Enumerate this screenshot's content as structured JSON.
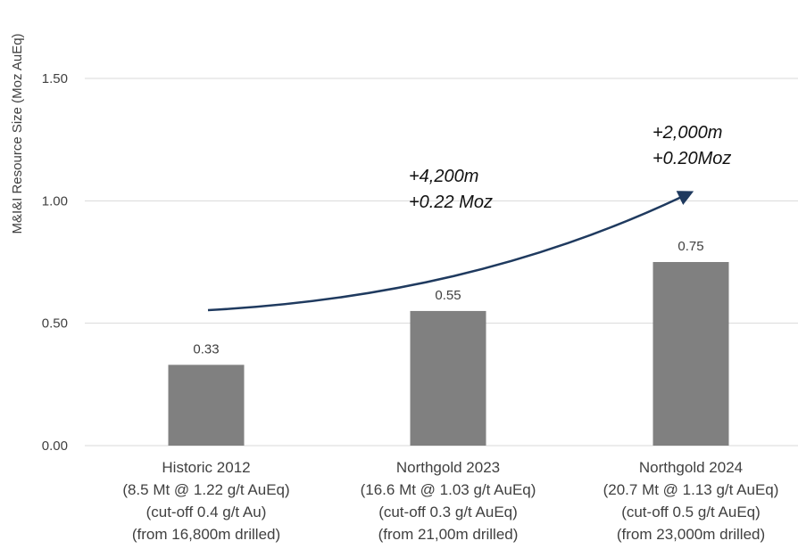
{
  "chart_data": {
    "type": "bar",
    "ylabel": "M&I&I Resource Size (Moz AuEq)",
    "ylim": [
      0,
      1.5
    ],
    "yticks": [
      0,
      0.5,
      1.0,
      1.5
    ],
    "ytick_labels": [
      "0.00",
      "0.50",
      "1.00",
      "1.50"
    ],
    "grid": true,
    "categories": [
      [
        "Historic 2012",
        "(8.5 Mt @ 1.22 g/t AuEq)",
        "(cut-off 0.4 g/t Au)",
        "(from 16,800m drilled)"
      ],
      [
        "Northgold 2023",
        "(16.6 Mt @ 1.03 g/t AuEq)",
        "(cut-off 0.3 g/t AuEq)",
        "(from 21,00m drilled)"
      ],
      [
        "Northgold 2024",
        "(20.7 Mt @ 1.13 g/t AuEq)",
        "(cut-off 0.5 g/t AuEq)",
        "(from 23,000m drilled)"
      ]
    ],
    "values": [
      0.33,
      0.55,
      0.75
    ],
    "data_labels": [
      "0.33",
      "0.55",
      "0.75"
    ],
    "annotations": [
      [
        "+4,200m",
        "+0.22 Moz"
      ],
      [
        "+2,000m",
        "+0.20Moz"
      ]
    ],
    "colors": {
      "bar": "#808080",
      "grid": "#d9d9d9",
      "arrow": "#1f3a5f",
      "text": "#404040"
    }
  }
}
